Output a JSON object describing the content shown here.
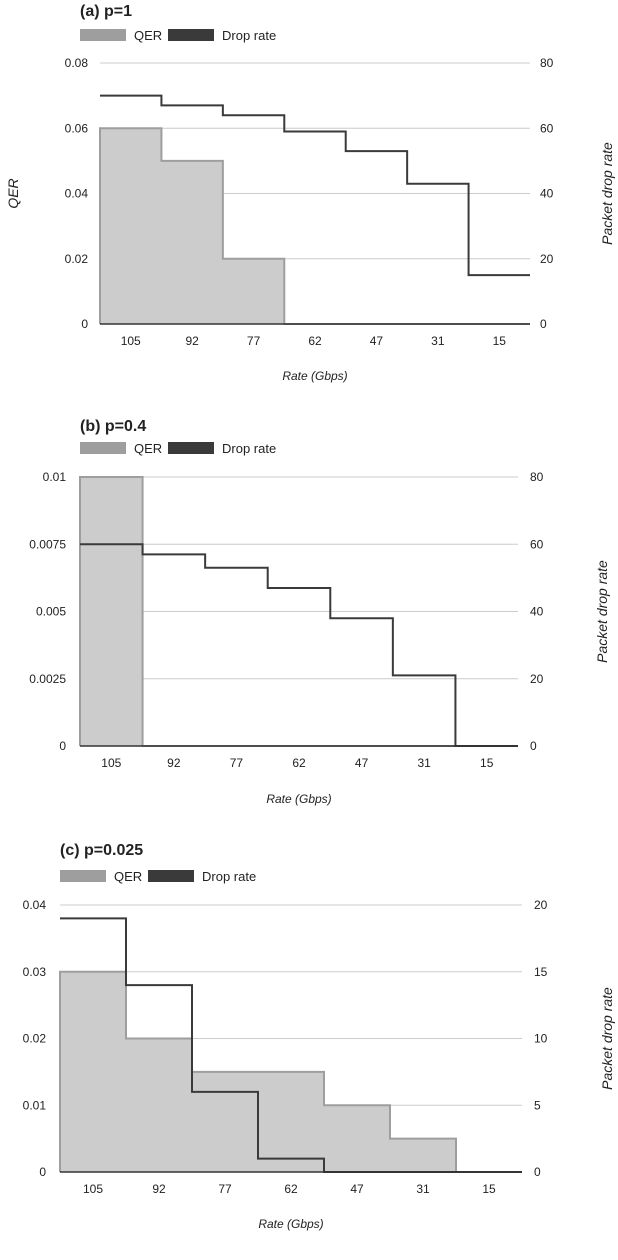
{
  "chart_data": [
    {
      "type": "area",
      "title": "(a) p=1",
      "xlabel": "Rate (Gbps)",
      "ylabel": "QER",
      "y2label": "Packet drop rate",
      "categories": [
        "105",
        "92",
        "77",
        "62",
        "47",
        "31",
        "15"
      ],
      "ylim": [
        0,
        0.08
      ],
      "y2lim": [
        0,
        80
      ],
      "yticks": [
        "0",
        "0.02",
        "0.04",
        "0.06",
        "0.08"
      ],
      "y2ticks": [
        "0",
        "20",
        "40",
        "60",
        "80"
      ],
      "grid": true,
      "legend_position": "top-left",
      "series": [
        {
          "name": "QER",
          "axis": "left",
          "style": "stepped-area",
          "values": [
            0.06,
            0.05,
            0.02,
            0,
            0,
            0,
            0
          ]
        },
        {
          "name": "Drop rate",
          "axis": "right",
          "style": "stepped-line",
          "values": [
            70,
            67,
            64,
            59,
            53,
            43,
            15
          ]
        }
      ]
    },
    {
      "type": "area",
      "title": "(b) p=0.4",
      "xlabel": "Rate (Gbps)",
      "ylabel": "",
      "y2label": "Packet drop rate",
      "categories": [
        "105",
        "92",
        "77",
        "62",
        "47",
        "31",
        "15"
      ],
      "ylim": [
        0,
        0.01
      ],
      "y2lim": [
        0,
        80
      ],
      "yticks": [
        "0",
        "0.0025",
        "0.005",
        "0.0075",
        "0.01"
      ],
      "y2ticks": [
        "0",
        "20",
        "40",
        "60",
        "80"
      ],
      "grid": true,
      "legend_position": "top-left",
      "series": [
        {
          "name": "QER",
          "axis": "left",
          "style": "stepped-area",
          "values": [
            0.01,
            0,
            0,
            0,
            0,
            0,
            0
          ]
        },
        {
          "name": "Drop rate",
          "axis": "right",
          "style": "stepped-line",
          "values": [
            60,
            57,
            53,
            47,
            38,
            21,
            0
          ]
        }
      ]
    },
    {
      "type": "area",
      "title": "(c) p=0.025",
      "xlabel": "Rate (Gbps)",
      "ylabel": "",
      "y2label": "Packet drop rate",
      "categories": [
        "105",
        "92",
        "77",
        "62",
        "47",
        "31",
        "15"
      ],
      "ylim": [
        0,
        0.04
      ],
      "y2lim": [
        0,
        20
      ],
      "yticks": [
        "0",
        "0.01",
        "0.02",
        "0.03",
        "0.04"
      ],
      "y2ticks": [
        "0",
        "5",
        "10",
        "15",
        "20"
      ],
      "grid": true,
      "legend_position": "top-left",
      "series": [
        {
          "name": "QER",
          "axis": "left",
          "style": "stepped-area",
          "values": [
            0.03,
            0.02,
            0.015,
            0.015,
            0.01,
            0.005,
            0
          ]
        },
        {
          "name": "Drop rate",
          "axis": "right",
          "style": "stepped-line",
          "values": [
            19,
            14,
            6,
            1,
            0,
            0,
            0
          ]
        }
      ]
    }
  ],
  "colors": {
    "qer_fill": "#cccccc",
    "qer_stroke": "#9e9e9e",
    "qer_legend": "#9e9e9e",
    "drop_line": "#3a3a3a",
    "drop_legend": "#3a3a3a",
    "grid": "#cccccc",
    "axis": "#333333",
    "text": "#222222"
  }
}
